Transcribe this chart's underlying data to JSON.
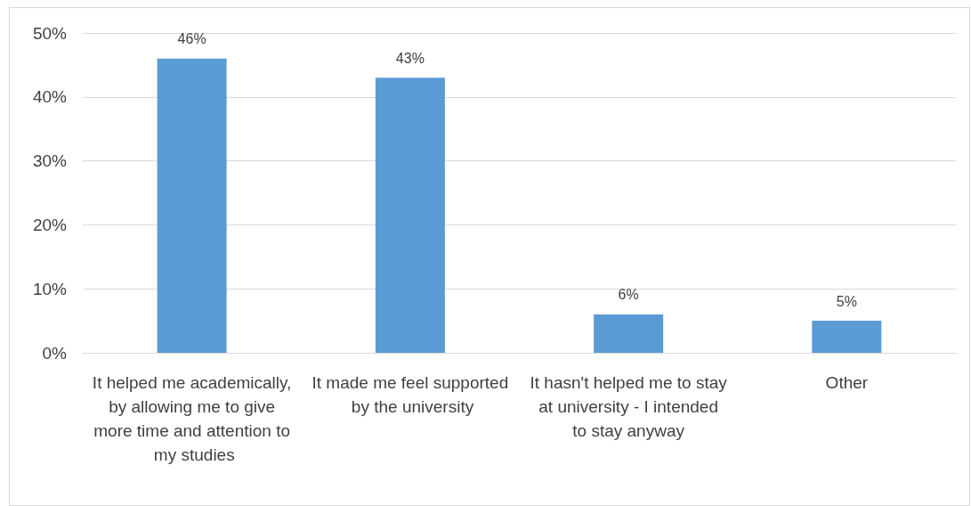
{
  "chart_data": {
    "type": "bar",
    "categories": [
      "It helped me academically, by allowing me to give more time and attention to my studies",
      "It made me feel supported by the university",
      "It hasn't helped me to stay at university - I intended to stay anyway",
      "Other"
    ],
    "values": [
      46,
      43,
      6,
      5
    ],
    "value_labels": [
      "46%",
      "43%",
      "6%",
      "5%"
    ],
    "color": "#5b9bd5",
    "ylim": [
      0,
      50
    ],
    "yticks": [
      {
        "value": 0,
        "label": "0%"
      },
      {
        "value": 10,
        "label": "10%"
      },
      {
        "value": 20,
        "label": "20%"
      },
      {
        "value": 30,
        "label": "30%"
      },
      {
        "value": 40,
        "label": "40%"
      },
      {
        "value": 50,
        "label": "50%"
      }
    ],
    "grid": "y"
  }
}
